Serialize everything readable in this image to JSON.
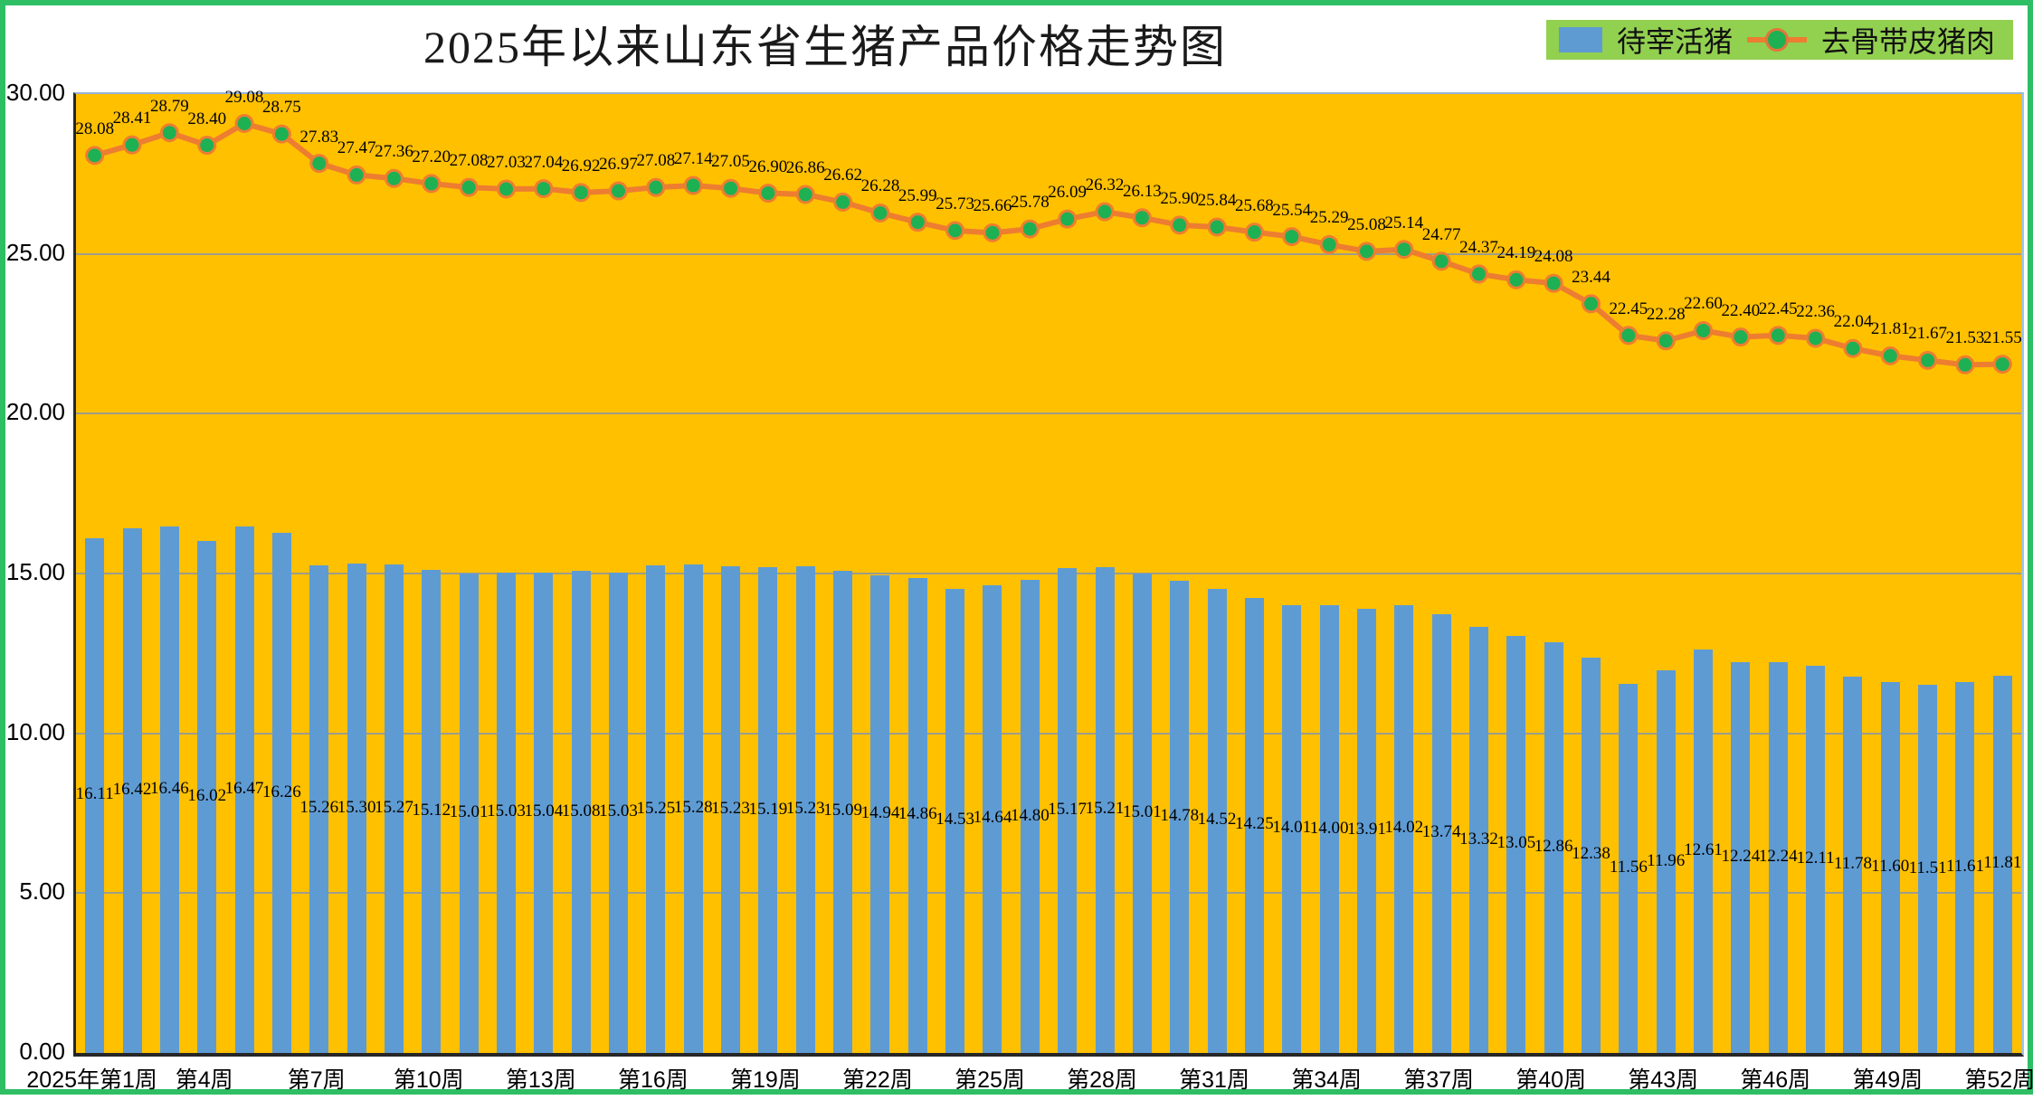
{
  "title": "2025年以来山东省生猪产品价格走势图",
  "legend": {
    "bars": {
      "label": "待宰活猪",
      "color": "#5E9BD3"
    },
    "line": {
      "label": "去骨带皮猪肉",
      "color": "#ED7D31",
      "marker_color": "#1DB153"
    }
  },
  "colors": {
    "plot_background": "#FFC000",
    "frame_border": "#2EBE64",
    "legend_background": "#92D050",
    "bar_fill": "#5E9BD3",
    "line_stroke": "#ED7D31",
    "marker_fill": "#1DB153",
    "gridline": "#8C97A3"
  },
  "y_axis": {
    "min": 0,
    "max": 30,
    "step": 5,
    "tick_labels": [
      "0.00",
      "5.00",
      "10.00",
      "15.00",
      "20.00",
      "25.00",
      "30.00"
    ]
  },
  "x_axis": {
    "first_week": 1,
    "last_week": 52,
    "tick_interval_weeks": 3,
    "tick_labels": [
      "2025年第1周",
      "第4周",
      "第7周",
      "第10周",
      "第13周",
      "第16周",
      "第19周",
      "第22周",
      "第25周",
      "第28周",
      "第31周",
      "第34周",
      "第37周",
      "第40周",
      "第43周",
      "第46周",
      "第49周",
      "第52周"
    ]
  },
  "chart_data": {
    "type": "combo",
    "x_weeks_count": 52,
    "ylim": [
      0,
      30
    ],
    "grid": true,
    "legend_position": "top-right",
    "series": [
      {
        "name": "待宰活猪",
        "type": "bar",
        "values": [
          16.11,
          16.42,
          16.46,
          16.02,
          16.47,
          16.26,
          15.26,
          15.3,
          15.27,
          15.12,
          15.01,
          15.03,
          15.04,
          15.08,
          15.03,
          15.25,
          15.28,
          15.23,
          15.19,
          15.23,
          15.09,
          14.94,
          14.86,
          14.53,
          14.64,
          14.8,
          15.17,
          15.21,
          15.01,
          14.78,
          14.52,
          14.25,
          14.01,
          14.0,
          13.91,
          14.02,
          13.74,
          13.32,
          13.05,
          12.86,
          12.38,
          11.56,
          11.96,
          12.61,
          12.24,
          12.24,
          12.11,
          11.78,
          11.6,
          11.51,
          11.61,
          11.81
        ]
      },
      {
        "name": "去骨带皮猪肉",
        "type": "line",
        "values": [
          28.08,
          28.41,
          28.79,
          28.4,
          29.08,
          28.75,
          27.83,
          27.47,
          27.36,
          27.2,
          27.08,
          27.03,
          27.04,
          26.92,
          26.97,
          27.08,
          27.14,
          27.05,
          26.9,
          26.86,
          26.62,
          26.28,
          25.99,
          25.73,
          25.66,
          25.78,
          26.09,
          26.32,
          26.13,
          25.9,
          25.84,
          25.68,
          25.54,
          25.29,
          25.08,
          25.14,
          24.77,
          24.37,
          24.19,
          24.08,
          23.44,
          22.45,
          22.28,
          22.6,
          22.4,
          22.45,
          22.36,
          22.04,
          21.81,
          21.67,
          21.53,
          21.55
        ]
      }
    ]
  }
}
